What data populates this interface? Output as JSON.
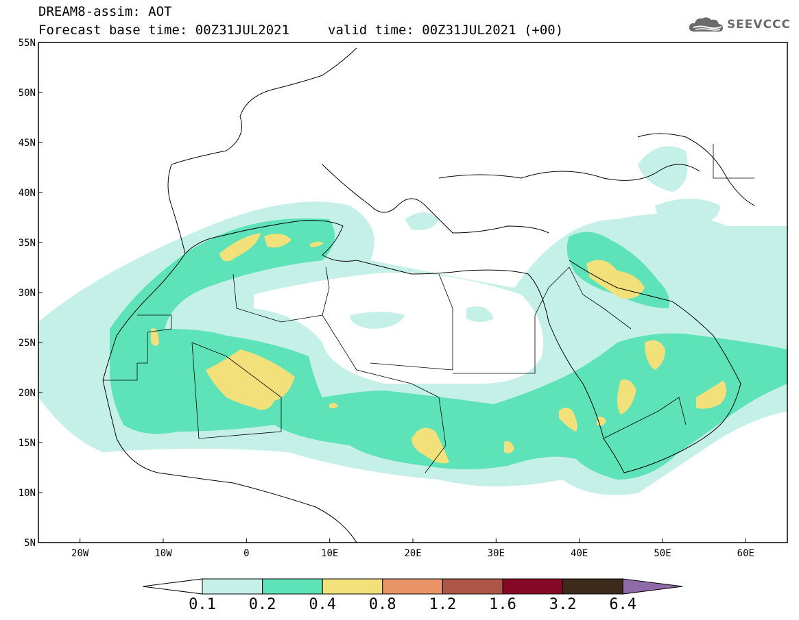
{
  "header": {
    "title": "DREAM8-assim: AOT",
    "base_time": "Forecast base time: 00Z31JUL2021",
    "valid_time": "valid time: 00Z31JUL2021 (+00)"
  },
  "logo": {
    "text": "SEEVCCC",
    "icon": "cloud-icon"
  },
  "map": {
    "lon_range": [
      -25,
      65
    ],
    "lat_range": [
      5,
      55
    ],
    "lat_labels": [
      "5N",
      "10N",
      "15N",
      "20N",
      "25N",
      "30N",
      "35N",
      "40N",
      "45N",
      "50N",
      "55N"
    ],
    "lon_labels": [
      "20W",
      "10W",
      "0",
      "10E",
      "20E",
      "30E",
      "40E",
      "50E",
      "60E"
    ],
    "projection": "lat-lon"
  },
  "colorbar": {
    "labels": [
      "0.1",
      "0.2",
      "0.4",
      "0.8",
      "1.2",
      "1.6",
      "3.2",
      "6.4"
    ],
    "colors": [
      "#ffffff",
      "#c4f0e8",
      "#5ee2b7",
      "#f2e07a",
      "#e89466",
      "#ad5547",
      "#850927",
      "#3d2a1a",
      "#8f6aa8"
    ]
  }
}
